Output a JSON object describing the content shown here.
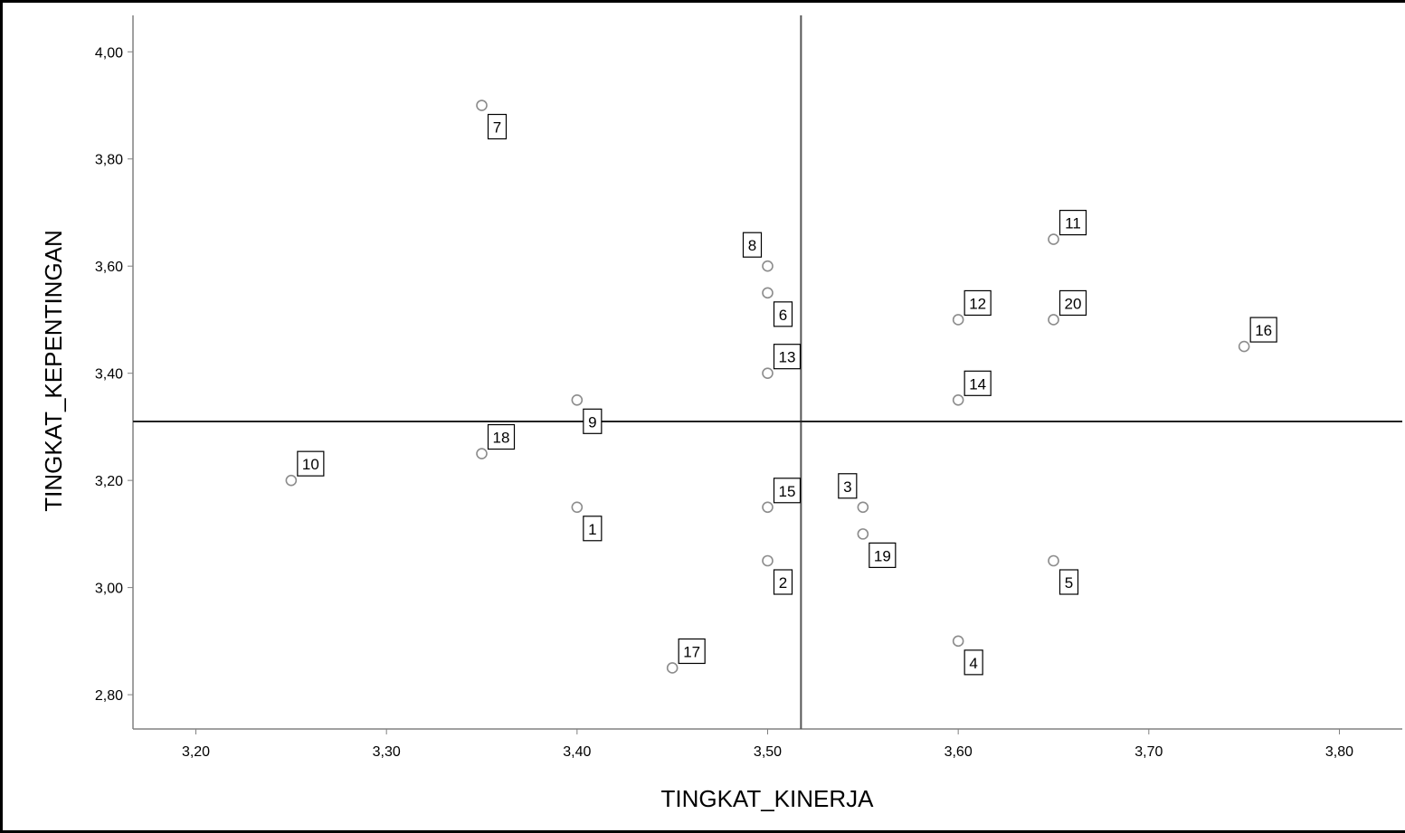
{
  "chart_data": {
    "type": "scatter",
    "xlabel": "TINGKAT_KINERJA",
    "ylabel": "TINGKAT_KEPENTINGAN",
    "xlim": [
      3.167,
      3.833
    ],
    "ylim": [
      2.736,
      4.068
    ],
    "x_ticks": [
      "3,20",
      "3,30",
      "3,40",
      "3,50",
      "3,60",
      "3,70",
      "3,80"
    ],
    "x_tick_values": [
      3.2,
      3.3,
      3.4,
      3.5,
      3.6,
      3.7,
      3.8
    ],
    "y_ticks": [
      "2,80",
      "3,00",
      "3,20",
      "3,40",
      "3,60",
      "3,80",
      "4,00"
    ],
    "y_tick_values": [
      2.8,
      3.0,
      3.2,
      3.4,
      3.6,
      3.8,
      4.0
    ],
    "reference_lines": {
      "x": 3.5175,
      "y": 3.31
    },
    "grid": false,
    "colors": {
      "marker": "#8c8c8c",
      "reference_line": "#000000",
      "axis": "#808080"
    },
    "points": [
      {
        "label": "1",
        "x": 3.4,
        "y": 3.15,
        "label_pos": "below-right"
      },
      {
        "label": "2",
        "x": 3.5,
        "y": 3.05,
        "label_pos": "below-right"
      },
      {
        "label": "3",
        "x": 3.55,
        "y": 3.15,
        "label_pos": "above-left"
      },
      {
        "label": "4",
        "x": 3.6,
        "y": 2.9,
        "label_pos": "below-right"
      },
      {
        "label": "5",
        "x": 3.65,
        "y": 3.05,
        "label_pos": "below-right"
      },
      {
        "label": "6",
        "x": 3.5,
        "y": 3.55,
        "label_pos": "below-right"
      },
      {
        "label": "7",
        "x": 3.35,
        "y": 3.9,
        "label_pos": "below-right"
      },
      {
        "label": "8",
        "x": 3.5,
        "y": 3.6,
        "label_pos": "above-left"
      },
      {
        "label": "9",
        "x": 3.4,
        "y": 3.35,
        "label_pos": "below-right"
      },
      {
        "label": "10",
        "x": 3.25,
        "y": 3.2,
        "label_pos": "above-right"
      },
      {
        "label": "11",
        "x": 3.65,
        "y": 3.65,
        "label_pos": "above-right"
      },
      {
        "label": "12",
        "x": 3.6,
        "y": 3.5,
        "label_pos": "above-right"
      },
      {
        "label": "13",
        "x": 3.5,
        "y": 3.4,
        "label_pos": "above-right"
      },
      {
        "label": "14",
        "x": 3.6,
        "y": 3.35,
        "label_pos": "above-right"
      },
      {
        "label": "15",
        "x": 3.5,
        "y": 3.15,
        "label_pos": "above-right"
      },
      {
        "label": "16",
        "x": 3.75,
        "y": 3.45,
        "label_pos": "above-right"
      },
      {
        "label": "17",
        "x": 3.45,
        "y": 2.85,
        "label_pos": "above-right"
      },
      {
        "label": "18",
        "x": 3.35,
        "y": 3.25,
        "label_pos": "above-right"
      },
      {
        "label": "19",
        "x": 3.55,
        "y": 3.1,
        "label_pos": "below-right"
      },
      {
        "label": "20",
        "x": 3.65,
        "y": 3.5,
        "label_pos": "above-right"
      }
    ]
  }
}
